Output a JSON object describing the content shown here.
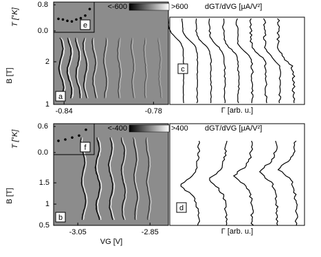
{
  "chart_data": [
    {
      "type": "heatmap",
      "label": "a",
      "ylabel": "B [T]",
      "xlim": [
        -0.847,
        -0.77
      ],
      "ylim": [
        1,
        3.4
      ],
      "xticks": [
        -0.84,
        -0.78
      ],
      "yticks": [
        1,
        2
      ],
      "colorbar": {
        "min_label": "<-600",
        "max_label": ">600",
        "label": "dGT/dVG [μA/V²]"
      }
    },
    {
      "type": "profile",
      "label": "c",
      "xlabel": "Γ [arb. u.]"
    },
    {
      "type": "scatter",
      "label": "e",
      "ylabel": "T [°K]",
      "ylim": [
        0,
        0.8
      ],
      "yticks": [
        {
          "value": 0,
          "label": "0.0"
        },
        0.8
      ],
      "values": [
        0.37,
        0.35,
        0.31,
        0.29,
        0.35,
        0.39,
        0.47,
        0.67
      ]
    },
    {
      "type": "heatmap",
      "label": "b",
      "ylabel": "B [T]",
      "xlabel": "VG [V]",
      "xlim": [
        -3.117,
        -2.799
      ],
      "ylim": [
        0.5,
        2.89
      ],
      "xticks": [
        -3.05,
        -2.85
      ],
      "yticks": [
        0.5,
        1,
        1.5
      ],
      "colorbar": {
        "min_label": "<-400",
        "max_label": ">400",
        "label": "dGT/dVG [μA/V²]"
      }
    },
    {
      "type": "profile",
      "label": "d",
      "xlabel": "Γ [arb. u.]"
    },
    {
      "type": "scatter",
      "label": "f",
      "ylabel": "T [°K]",
      "ylim": [
        0,
        0.6
      ],
      "yticks": [
        {
          "value": 0,
          "label": "0.0"
        },
        0.6
      ],
      "values": [
        0.27,
        0.3,
        0.345,
        0.39,
        0.525
      ]
    }
  ]
}
